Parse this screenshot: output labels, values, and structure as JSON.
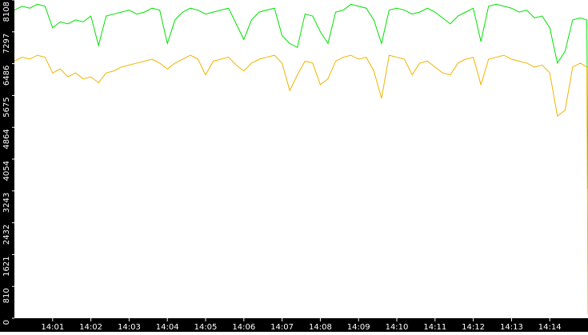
{
  "chart_data": {
    "type": "line",
    "x": [
      0,
      0.2,
      0.4,
      0.6,
      0.8,
      1.0,
      1.2,
      1.4,
      1.6,
      1.8,
      2.0,
      2.2,
      2.4,
      2.6,
      2.8,
      3.0,
      3.2,
      3.4,
      3.6,
      3.8,
      4.0,
      4.2,
      4.4,
      4.6,
      4.8,
      5.0,
      5.2,
      5.4,
      5.6,
      5.8,
      6.0,
      6.2,
      6.4,
      6.6,
      6.8,
      7.0,
      7.2,
      7.4,
      7.6,
      7.8,
      8.0,
      8.2,
      8.4,
      8.6,
      8.8,
      9.0,
      9.2,
      9.4,
      9.6,
      9.8,
      10.0,
      10.2,
      10.4,
      10.6,
      10.8,
      11.0,
      11.2,
      11.4,
      11.6,
      11.8,
      12.0,
      12.2,
      12.4,
      12.6,
      12.8,
      13.0,
      13.2,
      13.4,
      13.6,
      13.8,
      14.0,
      14.2,
      14.4,
      14.6,
      14.8,
      14.97,
      15.0
    ],
    "series": [
      {
        "color": "#00e000",
        "values": [
          7850,
          7950,
          7900,
          8000,
          7950,
          7400,
          7550,
          7500,
          7600,
          7550,
          7700,
          6950,
          7700,
          7750,
          7800,
          7850,
          7750,
          7800,
          7900,
          7850,
          7000,
          7600,
          7800,
          7900,
          7850,
          7750,
          7800,
          7850,
          7900,
          7500,
          7100,
          7600,
          7800,
          7850,
          7900,
          7200,
          7000,
          6900,
          7750,
          7700,
          7300,
          7000,
          7800,
          7850,
          8000,
          7950,
          7900,
          7600,
          7000,
          7850,
          7900,
          7850,
          7750,
          7800,
          7900,
          7800,
          7650,
          7500,
          7700,
          7800,
          7900,
          7050,
          7950,
          8000,
          7950,
          7900,
          7800,
          7850,
          7650,
          7700,
          7400,
          6500,
          6800,
          7600,
          7650,
          7600,
          3300
        ]
      },
      {
        "color": "#f0b400",
        "values": [
          6550,
          6650,
          6600,
          6700,
          6650,
          6250,
          6350,
          6150,
          6250,
          6100,
          6150,
          6000,
          6250,
          6300,
          6400,
          6450,
          6500,
          6550,
          6600,
          6500,
          6350,
          6500,
          6600,
          6700,
          6600,
          6200,
          6550,
          6600,
          6650,
          6450,
          6300,
          6500,
          6600,
          6650,
          6700,
          6500,
          5800,
          6200,
          6550,
          6500,
          5950,
          6100,
          6550,
          6650,
          6700,
          6600,
          6650,
          6300,
          5600,
          6700,
          6650,
          6600,
          6200,
          6500,
          6550,
          6400,
          6250,
          6200,
          6500,
          6600,
          6650,
          5950,
          6600,
          6650,
          6700,
          6600,
          6550,
          6500,
          6400,
          6450,
          6250,
          5150,
          5300,
          6400,
          6500,
          6400,
          100
        ]
      }
    ],
    "xlim": [
      0,
      15
    ],
    "xticks": [
      {
        "value": 1,
        "label": "14:01"
      },
      {
        "value": 2,
        "label": "14:02"
      },
      {
        "value": 3,
        "label": "14:03"
      },
      {
        "value": 4,
        "label": "14:04"
      },
      {
        "value": 5,
        "label": "14:05"
      },
      {
        "value": 6,
        "label": "14:06"
      },
      {
        "value": 7,
        "label": "14:07"
      },
      {
        "value": 8,
        "label": "14:08"
      },
      {
        "value": 9,
        "label": "14:09"
      },
      {
        "value": 10,
        "label": "14:10"
      },
      {
        "value": 11,
        "label": "14:11"
      },
      {
        "value": 12,
        "label": "14:12"
      },
      {
        "value": 13,
        "label": "14:13"
      },
      {
        "value": 14,
        "label": "14:14"
      }
    ],
    "ylim": [
      0,
      8108
    ],
    "yticks": [
      0,
      810,
      1621,
      2432,
      3243,
      4054,
      4864,
      5675,
      6486,
      7297,
      8108
    ]
  }
}
